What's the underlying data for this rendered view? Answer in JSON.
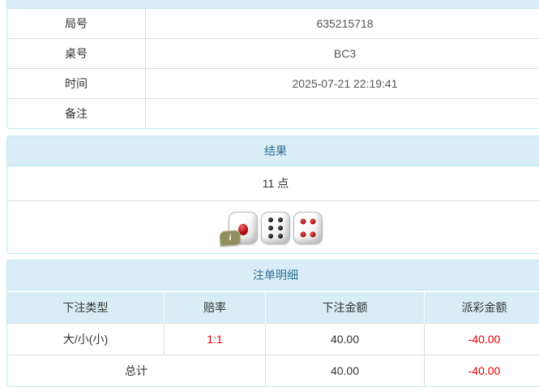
{
  "info_table": {
    "rows": [
      {
        "label": "局号",
        "value": "635215718"
      },
      {
        "label": "桌号",
        "value": "BC3"
      },
      {
        "label": "时间",
        "value": "2025-07-21 22:19:41"
      },
      {
        "label": "备注",
        "value": ""
      }
    ]
  },
  "result_panel": {
    "title": "结果",
    "points": "11 点",
    "dice": [
      {
        "value": 1,
        "color": "red"
      },
      {
        "value": 6,
        "color": "black"
      },
      {
        "value": 4,
        "color": "red"
      }
    ],
    "info_badge": "i"
  },
  "bets_panel": {
    "title": "注单明细",
    "columns": [
      "下注类型",
      "赔率",
      "下注金额",
      "派彩金额"
    ],
    "rows": [
      {
        "bet_type": "大/小(小)",
        "odds": "1:1",
        "bet_amount": "40.00",
        "payout": "-40.00"
      }
    ],
    "total": {
      "label": "总计",
      "bet_amount": "40.00",
      "payout": "-40.00"
    }
  },
  "colors": {
    "panel_header_bg": "#d9edf7",
    "panel_border": "#bce8f1",
    "title_text": "#31708f",
    "cell_border": "#dddddd",
    "body_text": "#333333",
    "negative_text": "#e60000"
  }
}
